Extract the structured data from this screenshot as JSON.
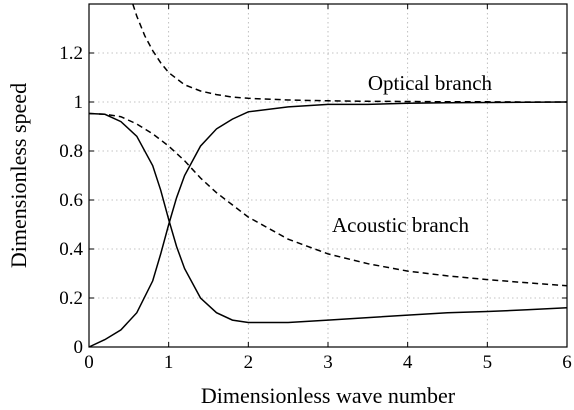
{
  "chart_data": {
    "type": "line",
    "title": "",
    "xlabel": "Dimensionless wave number",
    "ylabel": "Dimensionless speed",
    "xlim": [
      0,
      6
    ],
    "ylim": [
      0,
      1.4
    ],
    "grid": true,
    "xticks": [
      "0",
      "1",
      "2",
      "3",
      "4",
      "5",
      "6"
    ],
    "yticks": [
      "0",
      "0.2",
      "0.4",
      "0.6",
      "0.8",
      "1",
      "1.2"
    ],
    "annotations": [
      {
        "text": "Optical branch",
        "x": 3.5,
        "y": 1.05
      },
      {
        "text": "Acoustic branch",
        "x": 3.05,
        "y": 0.47
      }
    ],
    "series": [
      {
        "style": "solid",
        "x": [
          0,
          0.2,
          0.4,
          0.6,
          0.8,
          0.9,
          1.0,
          1.1,
          1.2,
          1.4,
          1.6,
          1.8,
          2.0,
          2.5,
          3.0,
          3.5,
          4.0,
          4.5,
          5.0,
          5.5,
          6.0
        ],
        "y": [
          0.953,
          0.95,
          0.92,
          0.86,
          0.74,
          0.64,
          0.52,
          0.41,
          0.32,
          0.2,
          0.14,
          0.11,
          0.1,
          0.1,
          0.11,
          0.12,
          0.13,
          0.14,
          0.145,
          0.152,
          0.16
        ]
      },
      {
        "style": "solid",
        "x": [
          0,
          0.2,
          0.4,
          0.6,
          0.8,
          0.9,
          1.0,
          1.1,
          1.2,
          1.4,
          1.6,
          1.8,
          2.0,
          2.5,
          3.0,
          3.5,
          4.0,
          4.5,
          5.0,
          5.5,
          6.0
        ],
        "y": [
          0,
          0.03,
          0.07,
          0.14,
          0.27,
          0.38,
          0.5,
          0.61,
          0.7,
          0.82,
          0.89,
          0.93,
          0.96,
          0.98,
          0.99,
          0.99,
          0.995,
          0.997,
          0.998,
          0.999,
          1.0
        ]
      },
      {
        "style": "dashed",
        "x": [
          0,
          0.2,
          0.4,
          0.6,
          0.8,
          1.0,
          1.2,
          1.4,
          1.6,
          1.8,
          2.0,
          2.5,
          3.0,
          3.5,
          4.0,
          4.5,
          5.0,
          5.5,
          6.0
        ],
        "y": [
          0.953,
          0.95,
          0.94,
          0.91,
          0.87,
          0.82,
          0.76,
          0.69,
          0.63,
          0.58,
          0.53,
          0.44,
          0.38,
          0.34,
          0.31,
          0.29,
          0.275,
          0.262,
          0.25
        ]
      },
      {
        "style": "dashed",
        "x": [
          0.55,
          0.6,
          0.7,
          0.8,
          0.9,
          1.0,
          1.2,
          1.4,
          1.6,
          1.8,
          2.0,
          2.5,
          3.0,
          3.5,
          4.0,
          4.5,
          5.0,
          5.5,
          6.0
        ],
        "y": [
          1.4,
          1.35,
          1.27,
          1.21,
          1.16,
          1.12,
          1.07,
          1.045,
          1.03,
          1.02,
          1.015,
          1.008,
          1.005,
          1.003,
          1.002,
          1.001,
          1.001,
          1.0,
          1.0
        ]
      }
    ]
  }
}
